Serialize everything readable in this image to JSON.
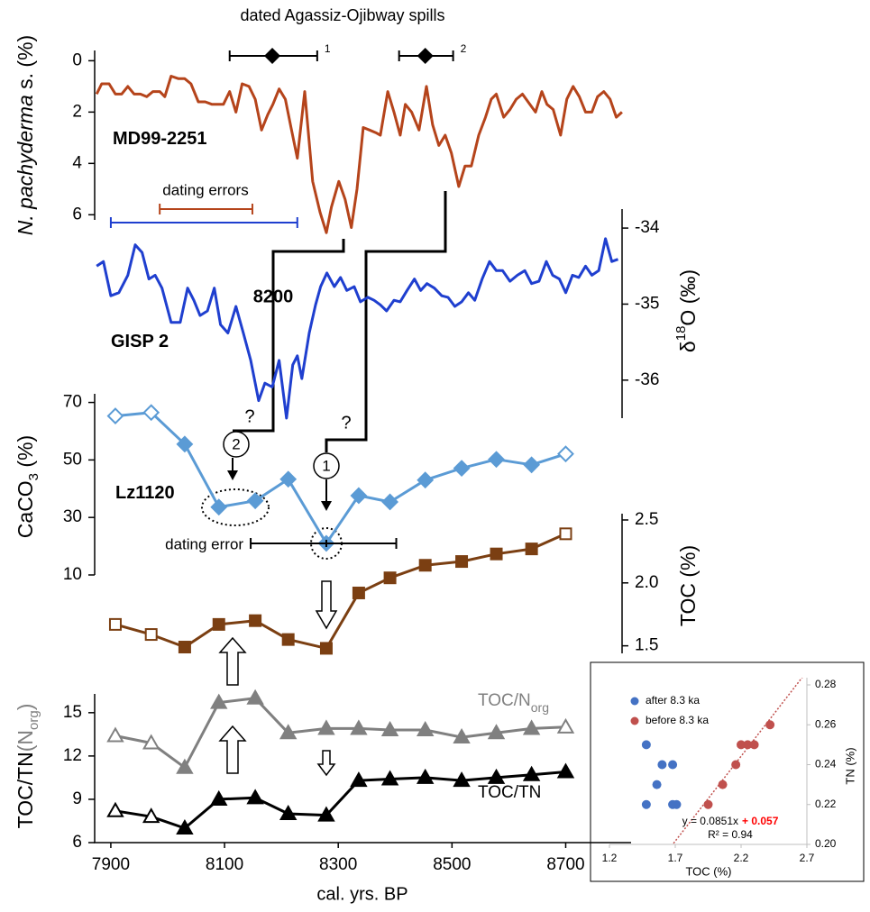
{
  "chart_data": [
    {
      "type": "line",
      "ylabel": [
        "N. pachyderma",
        " s. (%)"
      ],
      "ylim": [
        -0.4,
        6.2
      ],
      "y_inverted": true,
      "yticks": [
        0,
        2,
        4,
        6
      ],
      "series": [
        {
          "name": "MD99-2251",
          "color": "#b5441b",
          "x": [
            7875,
            7884,
            7897,
            7908,
            7919,
            7930,
            7941,
            7952,
            7963,
            7974,
            7986,
            7995,
            8006,
            8019,
            8030,
            8041,
            8054,
            8066,
            8078,
            8087,
            8098,
            8109,
            8120,
            8131,
            8143,
            8154,
            8165,
            8176,
            8185,
            8196,
            8207,
            8217,
            8228,
            8241,
            8255,
            8268,
            8279,
            8288,
            8301,
            8312,
            8323,
            8333,
            8344,
            8355,
            8366,
            8374,
            8387,
            8398,
            8409,
            8418,
            8429,
            8442,
            8455,
            8466,
            8477,
            8488,
            8499,
            8512,
            8523,
            8534,
            8547,
            8559,
            8569,
            8578,
            8591,
            8602,
            8613,
            8624,
            8637,
            8647,
            8658,
            8667,
            8678,
            8691,
            8702,
            8713,
            8724,
            8735,
            8746,
            8756,
            8767,
            8778,
            8789,
            8799
          ],
          "values": [
            1.3,
            0.9,
            0.9,
            1.3,
            1.3,
            1.0,
            1.3,
            1.3,
            1.4,
            1.2,
            1.2,
            1.4,
            0.6,
            0.7,
            0.7,
            0.9,
            1.6,
            1.6,
            1.7,
            1.7,
            1.7,
            1.2,
            2.0,
            0.9,
            1.0,
            1.5,
            2.7,
            2.1,
            1.7,
            1.1,
            1.5,
            2.6,
            3.8,
            1.2,
            4.7,
            5.9,
            6.7,
            5.7,
            4.7,
            5.4,
            6.5,
            5.0,
            2.6,
            2.7,
            2.8,
            2.9,
            1.2,
            2.0,
            2.9,
            1.7,
            2.0,
            2.7,
            1.0,
            2.5,
            3.3,
            2.9,
            3.6,
            4.9,
            4.1,
            4.1,
            2.9,
            2.2,
            1.5,
            1.3,
            2.2,
            1.9,
            1.5,
            1.3,
            1.7,
            2.0,
            1.2,
            1.7,
            1.9,
            2.9,
            1.5,
            1.0,
            1.4,
            2.0,
            2.0,
            1.4,
            1.2,
            1.5,
            2.2,
            2.0
          ]
        }
      ],
      "spills": {
        "title": "dated Agassiz-Ojibway spills",
        "items": [
          {
            "label": "1",
            "x": 8184,
            "xmin": 8109,
            "xmax": 8263
          },
          {
            "label": "2",
            "x": 8453,
            "xmin": 8407,
            "xmax": 8502
          }
        ]
      },
      "dating_errors": {
        "label": "dating errors",
        "bars": [
          {
            "color": "#b5441b",
            "xmin": 7986,
            "xmax": 8149
          },
          {
            "color": "#1f3fcf",
            "xmin": 7900,
            "xmax": 8228
          }
        ]
      }
    },
    {
      "type": "line",
      "ylabel": [
        "δ",
        "18",
        "O (‰)"
      ],
      "ylim": [
        -36.5,
        -33.75
      ],
      "yticks": [
        -34,
        -35,
        -36
      ],
      "event_label": "8200",
      "series": [
        {
          "name": "GISP 2",
          "color": "#1f3fcf",
          "x": [
            7875,
            7887,
            7900,
            7914,
            7930,
            7943,
            7955,
            7967,
            7978,
            7990,
            8006,
            8022,
            8035,
            8046,
            8057,
            8070,
            8082,
            8093,
            8106,
            8120,
            8133,
            8146,
            8160,
            8171,
            8184,
            8196,
            8209,
            8220,
            8228,
            8236,
            8249,
            8260,
            8269,
            8280,
            8293,
            8304,
            8315,
            8328,
            8339,
            8352,
            8363,
            8374,
            8385,
            8398,
            8409,
            8421,
            8434,
            8445,
            8456,
            8469,
            8482,
            8493,
            8505,
            8517,
            8529,
            8540,
            8553,
            8566,
            8578,
            8589,
            8602,
            8615,
            8628,
            8640,
            8653,
            8666,
            8677,
            8689,
            8700,
            8712,
            8723,
            8735,
            8746,
            8758,
            8770,
            8781,
            8792
          ],
          "values": [
            -34.5,
            -34.44,
            -34.89,
            -34.85,
            -34.62,
            -34.22,
            -34.32,
            -34.67,
            -34.62,
            -34.79,
            -35.24,
            -35.24,
            -34.79,
            -34.95,
            -35.15,
            -35.09,
            -34.79,
            -35.27,
            -35.38,
            -35.03,
            -35.38,
            -35.74,
            -36.27,
            -36.04,
            -36.09,
            -35.74,
            -36.5,
            -35.8,
            -35.68,
            -35.98,
            -35.38,
            -35.01,
            -34.77,
            -34.59,
            -34.77,
            -34.65,
            -34.82,
            -34.77,
            -34.97,
            -34.91,
            -34.95,
            -35.01,
            -35.09,
            -34.95,
            -34.97,
            -34.82,
            -34.67,
            -34.82,
            -34.73,
            -34.79,
            -34.89,
            -34.91,
            -35.03,
            -34.97,
            -34.85,
            -34.95,
            -34.67,
            -34.44,
            -34.56,
            -34.56,
            -34.7,
            -34.62,
            -34.56,
            -34.73,
            -34.7,
            -34.44,
            -34.62,
            -34.67,
            -34.85,
            -34.62,
            -34.65,
            -34.5,
            -34.62,
            -34.56,
            -34.14,
            -34.44,
            -34.41
          ]
        }
      ]
    },
    {
      "type": "line",
      "ylabel": [
        "CaCO",
        "3",
        " (%)"
      ],
      "ylim": [
        10,
        73
      ],
      "yticks": [
        10,
        30,
        50,
        70
      ],
      "series": [
        {
          "name": "Lz1120",
          "color": "#5b9bd5",
          "marker": "diamond",
          "open_markers": [
            0,
            1,
            13
          ],
          "x": [
            7908,
            7971,
            8030,
            8090,
            8154,
            8212,
            8279,
            8336,
            8391,
            8453,
            8517,
            8578,
            8640,
            8700
          ],
          "values": [
            65.3,
            66.5,
            55.5,
            33.6,
            35.8,
            43.3,
            21.0,
            37.6,
            35.4,
            43.0,
            47.1,
            50.2,
            48.3,
            52.1
          ]
        }
      ],
      "dating_error": {
        "label": "dating error",
        "x": 8279,
        "xmin": 8146,
        "xmax": 8402
      },
      "links": {
        "question_marks": [
          "?",
          "?"
        ],
        "circled": [
          "2",
          "1"
        ]
      }
    },
    {
      "type": "line",
      "ylabel": "TOC (%)",
      "ylim": [
        1.44,
        2.55
      ],
      "yticks": [
        1.5,
        {
          "value": 2,
          "label": "2.0"
        },
        2.5
      ],
      "series": [
        {
          "color": "#7b3f12",
          "marker": "square",
          "open_markers": [
            0,
            1,
            13
          ],
          "x": [
            7908,
            7971,
            8030,
            8090,
            8154,
            8212,
            8279,
            8336,
            8391,
            8453,
            8517,
            8578,
            8640,
            8700
          ],
          "values": [
            1.67,
            1.59,
            1.49,
            1.67,
            1.7,
            1.55,
            1.48,
            1.92,
            2.04,
            2.14,
            2.17,
            2.23,
            2.27,
            2.39
          ]
        }
      ]
    },
    {
      "type": "line",
      "ylabel": [
        "TOC/TN",
        "(N",
        "org",
        ")"
      ],
      "xlabel": "cal. yrs. BP",
      "xlim": [
        7870,
        8815
      ],
      "xticks": [
        7900,
        8100,
        8300,
        8500,
        8700
      ],
      "ylim": [
        6,
        16.3
      ],
      "yticks": [
        6,
        9,
        12,
        15
      ],
      "series": [
        {
          "name": "TOC/N",
          "name_sub": "org",
          "color": "#808080",
          "marker": "triangle",
          "open_markers": [
            0,
            1,
            13
          ],
          "x": [
            7908,
            7971,
            8030,
            8090,
            8154,
            8212,
            8279,
            8336,
            8391,
            8453,
            8517,
            8578,
            8640,
            8700
          ],
          "values": [
            13.4,
            12.9,
            11.2,
            15.7,
            16.0,
            13.6,
            13.9,
            13.9,
            13.8,
            13.8,
            13.3,
            13.6,
            13.9,
            14.0
          ]
        },
        {
          "name": "TOC/TN",
          "color": "#000000",
          "marker": "triangle",
          "open_markers": [
            0,
            1
          ],
          "x": [
            7908,
            7971,
            8030,
            8090,
            8154,
            8212,
            8279,
            8336,
            8391,
            8453,
            8517,
            8578,
            8640,
            8700
          ],
          "values": [
            8.2,
            7.8,
            7.0,
            9.0,
            9.1,
            8.0,
            7.9,
            10.3,
            10.4,
            10.5,
            10.3,
            10.5,
            10.7,
            10.9
          ]
        }
      ]
    },
    {
      "type": "scatter",
      "xlabel": "TOC (%)",
      "ylabel": "TN (%)",
      "xlim": [
        1.2,
        2.7
      ],
      "xticks": [
        1.2,
        1.7,
        2.2,
        2.7
      ],
      "ylim": [
        0.2,
        0.28
      ],
      "yticks": [
        {
          "value": 0.2,
          "label": "0.20"
        },
        0.22,
        0.24,
        0.26,
        0.28
      ],
      "legend": "top-left",
      "series": [
        {
          "name": "after 8.3 ka",
          "color": "#4472c4",
          "x": [
            1.48,
            1.6,
            1.68,
            1.56,
            1.48,
            1.68,
            1.71
          ],
          "values": [
            0.25,
            0.24,
            0.24,
            0.23,
            0.22,
            0.22,
            0.22
          ]
        },
        {
          "name": "before 8.3 ka",
          "color": "#c0504d",
          "x": [
            1.95,
            2.06,
            2.16,
            2.2,
            2.25,
            2.3,
            2.42
          ],
          "values": [
            0.22,
            0.23,
            0.24,
            0.25,
            0.25,
            0.25,
            0.26
          ]
        }
      ],
      "trendline": {
        "slope": 0.0851,
        "intercept": 0.057,
        "color": "#c0504d",
        "equation": "y = 0.0851x",
        "equation_intercept": "+ 0.057",
        "r2": "R² = 0.94"
      }
    }
  ]
}
